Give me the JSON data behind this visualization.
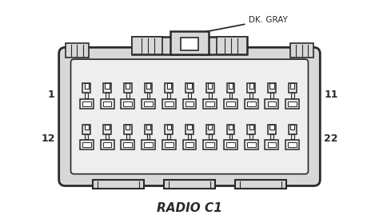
{
  "title": "RADIO C1",
  "label_dk_gray": "DK. GRAY",
  "pin_left_top": "1",
  "pin_left_bot": "12",
  "pin_right_top": "11",
  "pin_right_bot": "22",
  "bg_color": "#ffffff",
  "line_color": "#2a2a2a",
  "body_fill": "#d8d8d8",
  "inner_fill": "#eeeeee",
  "pin_fill": "#e8e8e8",
  "n_pins": 11,
  "title_fontsize": 11,
  "label_fontsize": 7.5
}
